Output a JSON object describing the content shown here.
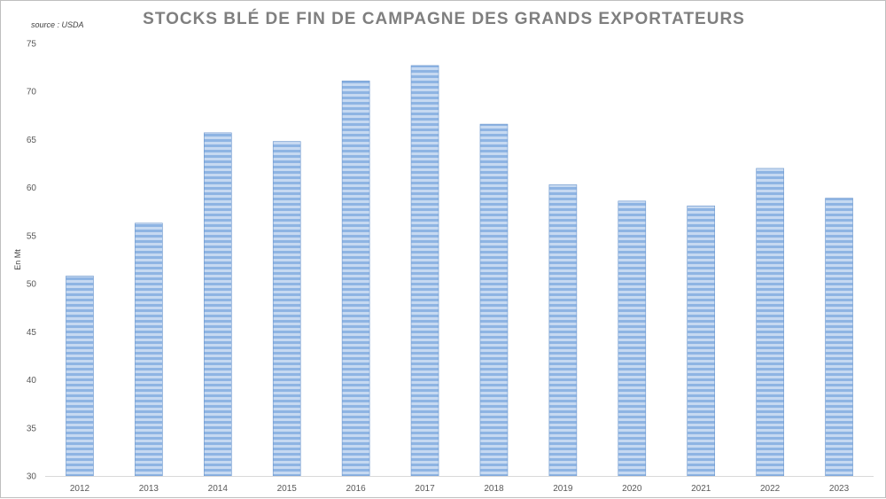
{
  "chart_data": {
    "type": "bar",
    "title": "STOCKS BLÉ DE FIN DE CAMPAGNE DES GRANDS EXPORTATEURS",
    "source": "source : USDA",
    "ylabel": "En Mt",
    "xlabel": "",
    "categories": [
      "2012",
      "2013",
      "2014",
      "2015",
      "2016",
      "2017",
      "2018",
      "2019",
      "2020",
      "2021",
      "2022",
      "2023"
    ],
    "values": [
      50.8,
      56.3,
      65.7,
      64.8,
      71.1,
      72.7,
      66.6,
      60.3,
      58.6,
      58.1,
      62.0,
      58.9
    ],
    "ylim": [
      30,
      75
    ],
    "yticks": [
      30,
      35,
      40,
      45,
      50,
      55,
      60,
      65,
      70,
      75
    ],
    "grid": false,
    "legend": "none",
    "bar_color": "#8eb4e3",
    "bar_stripe_color": "#c6d9f1",
    "bar_edge_color": "#6a95cc"
  }
}
